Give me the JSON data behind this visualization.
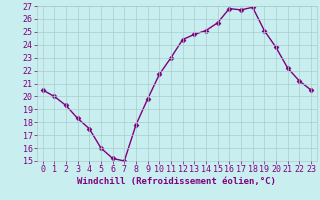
{
  "x": [
    0,
    1,
    2,
    3,
    4,
    5,
    6,
    7,
    8,
    9,
    10,
    11,
    12,
    13,
    14,
    15,
    16,
    17,
    18,
    19,
    20,
    21,
    22,
    23
  ],
  "y": [
    20.5,
    20.0,
    19.3,
    18.3,
    17.5,
    16.0,
    15.2,
    15.0,
    17.8,
    19.8,
    21.7,
    23.0,
    24.4,
    24.8,
    25.1,
    25.7,
    26.8,
    26.7,
    26.9,
    25.1,
    23.8,
    22.2,
    21.2,
    20.5
  ],
  "ylim": [
    15,
    27
  ],
  "yticks": [
    15,
    16,
    17,
    18,
    19,
    20,
    21,
    22,
    23,
    24,
    25,
    26,
    27
  ],
  "xticks": [
    0,
    1,
    2,
    3,
    4,
    5,
    6,
    7,
    8,
    9,
    10,
    11,
    12,
    13,
    14,
    15,
    16,
    17,
    18,
    19,
    20,
    21,
    22,
    23
  ],
  "xlabel": "Windchill (Refroidissement éolien,°C)",
  "line_color": "#800080",
  "marker": "D",
  "marker_size": 2.5,
  "bg_color": "#c8eef0",
  "grid_color": "#aacccc",
  "tick_color": "#800080",
  "label_color": "#800080",
  "font_size_label": 6.5,
  "font_size_tick": 6.0,
  "linewidth": 1.0
}
